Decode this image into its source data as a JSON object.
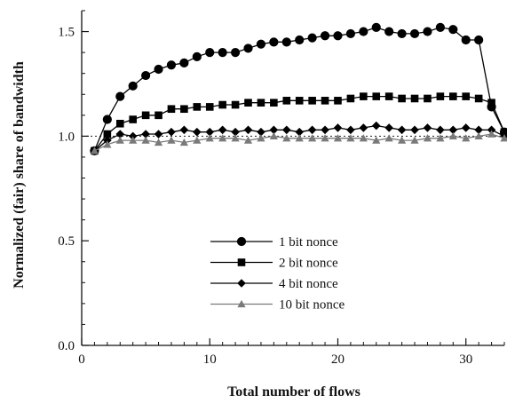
{
  "chart_data": {
    "type": "line",
    "xlabel": "Total number of flows",
    "ylabel": "Normalized (fair) share of bandwidth",
    "xlim": [
      0,
      33
    ],
    "ylim": [
      0.0,
      1.6
    ],
    "x_ticks": [
      0,
      10,
      20,
      30
    ],
    "x_tick_labels": [
      "0",
      "10",
      "20",
      "30"
    ],
    "y_ticks": [
      0.0,
      0.5,
      1.0,
      1.5
    ],
    "y_tick_labels": [
      "0.0",
      "0.5",
      "1.0",
      "1.5"
    ],
    "reference_line": 1.0,
    "legend_position": "center",
    "series": [
      {
        "name": "1 bit nonce",
        "marker": "circle",
        "color": "#000000",
        "x": [
          1,
          2,
          3,
          4,
          5,
          6,
          7,
          8,
          9,
          10,
          11,
          12,
          13,
          14,
          15,
          16,
          17,
          18,
          19,
          20,
          21,
          22,
          23,
          24,
          25,
          26,
          27,
          28,
          29,
          30,
          31,
          32,
          33
        ],
        "y": [
          0.93,
          1.08,
          1.19,
          1.24,
          1.29,
          1.32,
          1.34,
          1.35,
          1.38,
          1.4,
          1.4,
          1.4,
          1.42,
          1.44,
          1.45,
          1.45,
          1.46,
          1.47,
          1.48,
          1.48,
          1.49,
          1.5,
          1.52,
          1.5,
          1.49,
          1.49,
          1.5,
          1.52,
          1.51,
          1.46,
          1.46,
          1.14,
          1.02
        ]
      },
      {
        "name": "2 bit nonce",
        "marker": "square",
        "color": "#000000",
        "x": [
          1,
          2,
          3,
          4,
          5,
          6,
          7,
          8,
          9,
          10,
          11,
          12,
          13,
          14,
          15,
          16,
          17,
          18,
          19,
          20,
          21,
          22,
          23,
          24,
          25,
          26,
          27,
          28,
          29,
          30,
          31,
          32,
          33
        ],
        "y": [
          0.93,
          1.01,
          1.06,
          1.08,
          1.1,
          1.1,
          1.13,
          1.13,
          1.14,
          1.14,
          1.15,
          1.15,
          1.16,
          1.16,
          1.16,
          1.17,
          1.17,
          1.17,
          1.17,
          1.17,
          1.18,
          1.19,
          1.19,
          1.19,
          1.18,
          1.18,
          1.18,
          1.19,
          1.19,
          1.19,
          1.18,
          1.16,
          1.02
        ]
      },
      {
        "name": "4 bit nonce",
        "marker": "diamond",
        "color": "#000000",
        "x": [
          1,
          2,
          3,
          4,
          5,
          6,
          7,
          8,
          9,
          10,
          11,
          12,
          13,
          14,
          15,
          16,
          17,
          18,
          19,
          20,
          21,
          22,
          23,
          24,
          25,
          26,
          27,
          28,
          29,
          30,
          31,
          32,
          33
        ],
        "y": [
          0.93,
          0.98,
          1.01,
          1.0,
          1.01,
          1.01,
          1.02,
          1.03,
          1.02,
          1.02,
          1.03,
          1.02,
          1.03,
          1.02,
          1.03,
          1.03,
          1.02,
          1.03,
          1.03,
          1.04,
          1.03,
          1.04,
          1.05,
          1.04,
          1.03,
          1.03,
          1.04,
          1.03,
          1.03,
          1.04,
          1.03,
          1.03,
          1.0
        ]
      },
      {
        "name": "10 bit nonce",
        "marker": "triangle",
        "color": "#7a7a7a",
        "x": [
          1,
          2,
          3,
          4,
          5,
          6,
          7,
          8,
          9,
          10,
          11,
          12,
          13,
          14,
          15,
          16,
          17,
          18,
          19,
          20,
          21,
          22,
          23,
          24,
          25,
          26,
          27,
          28,
          29,
          30,
          31,
          32,
          33
        ],
        "y": [
          0.93,
          0.96,
          0.98,
          0.98,
          0.98,
          0.97,
          0.98,
          0.97,
          0.98,
          0.99,
          0.99,
          0.99,
          0.98,
          0.99,
          1.0,
          0.99,
          0.99,
          0.99,
          0.99,
          0.99,
          0.99,
          0.99,
          0.98,
          0.99,
          0.98,
          0.98,
          0.99,
          0.99,
          1.0,
          0.99,
          1.0,
          1.01,
          0.99
        ]
      }
    ]
  }
}
